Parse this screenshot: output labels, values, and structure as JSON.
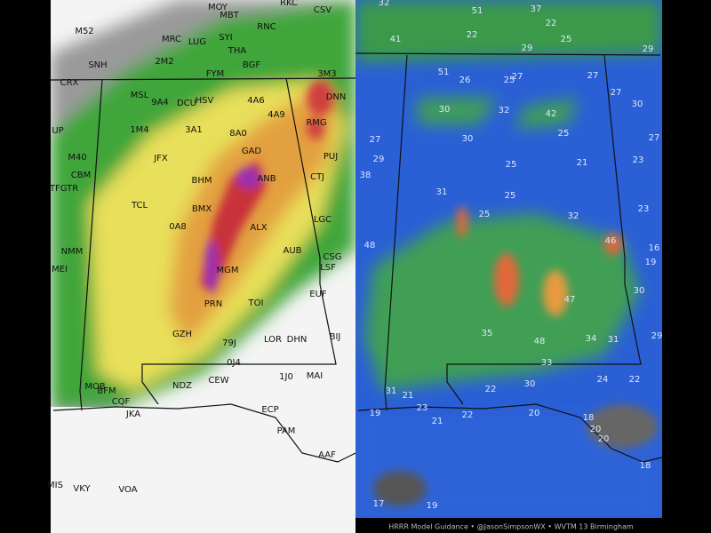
{
  "left_panel": {
    "stations": [
      "MOY",
      "MBT",
      "RKC",
      "M52",
      "MRC",
      "LUG",
      "SYI",
      "THA",
      "RNC",
      "CSV",
      "SNH",
      "2M2",
      "FYM",
      "BGF",
      "3M3",
      "CRX",
      "MSL",
      "9A4",
      "DCU",
      "HSV",
      "4A6",
      "DNN",
      "4A9",
      "UP",
      "1M4",
      "3A1",
      "8A0",
      "RMG",
      "GAD",
      "M40",
      "JFX",
      "PUJ",
      "CBM",
      "BHM",
      "ANB",
      "CTJ",
      "TFGTR",
      "TCL",
      "BMX",
      "LGC",
      "0A8",
      "ALX",
      "NMM",
      "AUB",
      "CSG",
      "MEI",
      "LSF",
      "MGM",
      "EUF",
      "PRN",
      "TOI",
      "GZH",
      "LOR",
      "DHN",
      "BIJ",
      "79J",
      "0J4",
      "1J0",
      "MAI",
      "NDZ",
      "CEW",
      "MOB",
      "BFM",
      "CQF",
      "JKA",
      "ECP",
      "PAM",
      "AAF",
      "MIS",
      "VKY",
      "VOA"
    ]
  },
  "right_panel": {
    "values": [
      32,
      51,
      37,
      22,
      41,
      22,
      29,
      25,
      29,
      51,
      26,
      25,
      27,
      27,
      27,
      30,
      32,
      42,
      30,
      27,
      30,
      25,
      27,
      29,
      25,
      21,
      23,
      38,
      31,
      25,
      23,
      25,
      32,
      48,
      46,
      16,
      19,
      30,
      47,
      35,
      48,
      34,
      31,
      29,
      33,
      30,
      24,
      22,
      22,
      31,
      21,
      23,
      19,
      22,
      20,
      21,
      18,
      20,
      20,
      18,
      17,
      19
    ]
  },
  "footer": {
    "text": "HRRR Model Guidance  •  @JasonSimpsonWX  •  WVTM 13 Birmingham"
  }
}
